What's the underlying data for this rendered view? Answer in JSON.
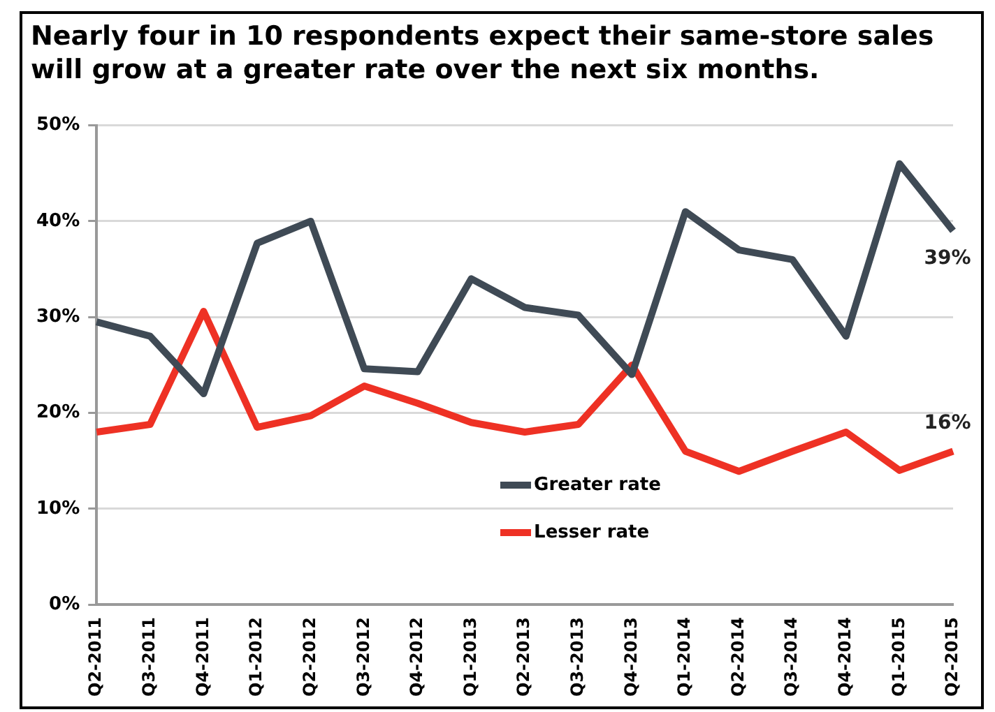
{
  "chart_data": {
    "type": "line",
    "title": "Nearly four in 10 respondents expect their same-store sales will grow at a greater rate over the next six months.",
    "categories": [
      "Q2-2011",
      "Q3-2011",
      "Q4-2011",
      "Q1-2012",
      "Q2-2012",
      "Q3-2012",
      "Q4-2012",
      "Q1-2013",
      "Q2-2013",
      "Q3-2013",
      "Q4-2013",
      "Q1-2014",
      "Q2-2014",
      "Q3-2014",
      "Q4-2014",
      "Q1-2015",
      "Q2-2015"
    ],
    "series": [
      {
        "name": "Greater rate",
        "color": "#3f4a55",
        "values": [
          29.5,
          28,
          22,
          37.7,
          40,
          24.6,
          24.3,
          34,
          31,
          30.2,
          24,
          41,
          37,
          36,
          28,
          46,
          39
        ]
      },
      {
        "name": "Lesser rate",
        "color": "#ee3124",
        "values": [
          18,
          18.8,
          30.6,
          18.5,
          19.7,
          22.8,
          21,
          19,
          18,
          18.8,
          25,
          16,
          13.9,
          16,
          18,
          14,
          16
        ]
      }
    ],
    "ylim": [
      0,
      50
    ],
    "yticks": [
      {
        "value": 0,
        "label": "0%"
      },
      {
        "value": 10,
        "label": "10%"
      },
      {
        "value": 20,
        "label": "20%"
      },
      {
        "value": 30,
        "label": "30%"
      },
      {
        "value": 40,
        "label": "40%"
      },
      {
        "value": 50,
        "label": "50%"
      }
    ],
    "grid": "y",
    "legend": "center",
    "marker": "none",
    "line_style": "solid",
    "annotations": [
      {
        "text": "39%",
        "x": "Q2-2015",
        "y": 39
      },
      {
        "text": "16%",
        "x": "Q2-2015",
        "y": 16
      }
    ]
  }
}
